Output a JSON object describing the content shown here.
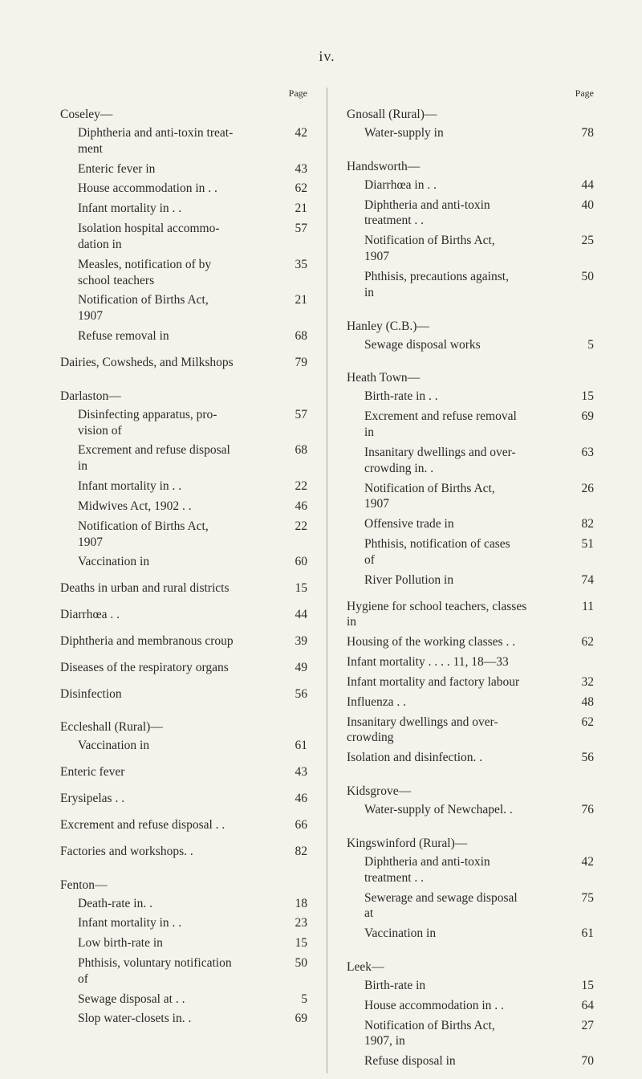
{
  "folio": "iv.",
  "page_label": "Page",
  "left": [
    {
      "type": "head",
      "text": "Coseley—"
    },
    {
      "type": "sub",
      "label": "Diphtheria and anti-toxin treat-\nment",
      "pg": "42"
    },
    {
      "type": "sub",
      "label": "Enteric fever in",
      "pg": "43"
    },
    {
      "type": "sub",
      "label": "House accommodation in  . .",
      "pg": "62"
    },
    {
      "type": "sub",
      "label": "Infant mortality in . .",
      "pg": "21"
    },
    {
      "type": "sub",
      "label": "Isolation hospital accommo-\ndation in",
      "pg": "57"
    },
    {
      "type": "sub",
      "label": "Measles, notification of by\nschool teachers",
      "pg": "35"
    },
    {
      "type": "sub",
      "label": "Notification of Births Act,\n1907",
      "pg": "21"
    },
    {
      "type": "sub",
      "label": "Refuse removal in",
      "pg": "68"
    },
    {
      "type": "gap"
    },
    {
      "type": "top",
      "label": "Dairies, Cowsheds, and Milkshops",
      "pg": "79"
    },
    {
      "type": "gap"
    },
    {
      "type": "head",
      "text": "Darlaston—"
    },
    {
      "type": "sub",
      "label": "Disinfecting apparatus, pro-\nvision of",
      "pg": "57"
    },
    {
      "type": "sub",
      "label": "Excrement and refuse disposal\nin",
      "pg": "68"
    },
    {
      "type": "sub",
      "label": "Infant mortality in . .",
      "pg": "22"
    },
    {
      "type": "sub",
      "label": "Midwives Act, 1902 . .",
      "pg": "46"
    },
    {
      "type": "sub",
      "label": "Notification of Births Act,\n1907",
      "pg": "22"
    },
    {
      "type": "sub",
      "label": "Vaccination in",
      "pg": "60"
    },
    {
      "type": "gap"
    },
    {
      "type": "top",
      "label": "Deaths in urban and rural districts",
      "pg": "15"
    },
    {
      "type": "gap"
    },
    {
      "type": "top",
      "label": "Diarrhœa  . .",
      "pg": "44"
    },
    {
      "type": "gap"
    },
    {
      "type": "top",
      "label": "Diphtheria and membranous croup",
      "pg": "39"
    },
    {
      "type": "gap"
    },
    {
      "type": "top",
      "label": "Diseases of the respiratory organs",
      "pg": "49"
    },
    {
      "type": "gap"
    },
    {
      "type": "top",
      "label": "Disinfection",
      "pg": "56"
    },
    {
      "type": "gap"
    },
    {
      "type": "head",
      "text": "Eccleshall (Rural)—"
    },
    {
      "type": "sub",
      "label": "Vaccination in",
      "pg": "61"
    },
    {
      "type": "gap"
    },
    {
      "type": "top",
      "label": "Enteric fever",
      "pg": "43"
    },
    {
      "type": "gap"
    },
    {
      "type": "top",
      "label": "Erysipelas . .",
      "pg": "46"
    },
    {
      "type": "gap"
    },
    {
      "type": "top",
      "label": "Excrement and refuse disposal  . .",
      "pg": "66"
    },
    {
      "type": "gap"
    },
    {
      "type": "top",
      "label": "Factories and workshops. .",
      "pg": "82"
    },
    {
      "type": "gap"
    },
    {
      "type": "head",
      "text": "Fenton—"
    },
    {
      "type": "sub",
      "label": "Death-rate in. .",
      "pg": "18"
    },
    {
      "type": "sub",
      "label": "Infant mortality in . .",
      "pg": "23"
    },
    {
      "type": "sub",
      "label": "Low birth-rate in",
      "pg": "15"
    },
    {
      "type": "sub",
      "label": "Phthisis, voluntary notification\nof",
      "pg": "50"
    },
    {
      "type": "sub",
      "label": "Sewage disposal at . .",
      "pg": "5"
    },
    {
      "type": "sub",
      "label": "Slop water-closets in. .",
      "pg": "69"
    }
  ],
  "right": [
    {
      "type": "head",
      "text": "Gnosall (Rural)—"
    },
    {
      "type": "sub",
      "label": "Water-supply in",
      "pg": "78"
    },
    {
      "type": "gap"
    },
    {
      "type": "head",
      "text": "Handsworth—"
    },
    {
      "type": "sub",
      "label": "Diarrhœa in . .",
      "pg": "44"
    },
    {
      "type": "sub",
      "label": "Diphtheria and anti-toxin\ntreatment . .",
      "pg": "40"
    },
    {
      "type": "sub",
      "label": "Notification of Births Act,\n1907",
      "pg": "25"
    },
    {
      "type": "sub",
      "label": "Phthisis, precautions against,\nin",
      "pg": "50"
    },
    {
      "type": "gap"
    },
    {
      "type": "head",
      "text": "Hanley (C.B.)—"
    },
    {
      "type": "sub",
      "label": "Sewage disposal works",
      "pg": "5"
    },
    {
      "type": "gap"
    },
    {
      "type": "head",
      "text": "Heath Town—"
    },
    {
      "type": "sub",
      "label": "Birth-rate in . .",
      "pg": "15"
    },
    {
      "type": "sub",
      "label": "Excrement and refuse removal\nin",
      "pg": "69"
    },
    {
      "type": "sub",
      "label": "Insanitary dwellings and over-\ncrowding in. .",
      "pg": "63"
    },
    {
      "type": "sub",
      "label": "Notification of Births Act,\n1907",
      "pg": "26"
    },
    {
      "type": "sub",
      "label": "Offensive trade in",
      "pg": "82"
    },
    {
      "type": "sub",
      "label": "Phthisis, notification of cases\nof",
      "pg": "51"
    },
    {
      "type": "sub",
      "label": "River Pollution in",
      "pg": "74"
    },
    {
      "type": "gap"
    },
    {
      "type": "top",
      "label": "Hygiene for school teachers, classes\nin",
      "pg": "11"
    },
    {
      "type": "top",
      "label": "Housing of the working classes . .",
      "pg": "62"
    },
    {
      "type": "top",
      "label": "Infant mortality    . .        . . 11, 18—33",
      "pg": ""
    },
    {
      "type": "top",
      "label": "Infant mortality and factory labour",
      "pg": "32"
    },
    {
      "type": "top",
      "label": "Influenza  . .",
      "pg": "48"
    },
    {
      "type": "top",
      "label": "Insanitary dwellings and over-\ncrowding",
      "pg": "62"
    },
    {
      "type": "top",
      "label": "Isolation and disinfection. .",
      "pg": "56"
    },
    {
      "type": "gap"
    },
    {
      "type": "head",
      "text": "Kidsgrove—"
    },
    {
      "type": "sub",
      "label": "Water-supply of Newchapel. .",
      "pg": "76"
    },
    {
      "type": "gap"
    },
    {
      "type": "head",
      "text": "Kingswinford (Rural)—"
    },
    {
      "type": "sub",
      "label": "Diphtheria and anti-toxin\ntreatment . .",
      "pg": "42"
    },
    {
      "type": "sub",
      "label": "Sewerage and sewage disposal\nat",
      "pg": "75"
    },
    {
      "type": "sub",
      "label": "Vaccination in",
      "pg": "61"
    },
    {
      "type": "gap"
    },
    {
      "type": "head",
      "text": "Leek—"
    },
    {
      "type": "sub",
      "label": "Birth-rate in",
      "pg": "15"
    },
    {
      "type": "sub",
      "label": "House accommodation in  . .",
      "pg": "64"
    },
    {
      "type": "sub",
      "label": "Notification of Births Act,\n1907, in",
      "pg": "27"
    },
    {
      "type": "sub",
      "label": "Refuse disposal in",
      "pg": "70"
    }
  ]
}
